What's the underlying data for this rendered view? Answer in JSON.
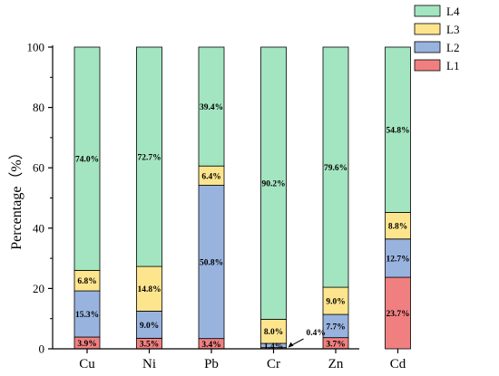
{
  "chart_data": {
    "type": "bar",
    "stacked": true,
    "categories": [
      "Cu",
      "Ni",
      "Pb",
      "Cr",
      "Zn",
      "Cd"
    ],
    "series": [
      {
        "name": "L1",
        "color": "#f08080",
        "values": [
          3.9,
          3.5,
          3.4,
          0.4,
          3.7,
          23.7
        ],
        "labels": [
          "3.9%",
          "3.5%",
          "3.4%",
          "0.4%",
          "3.7%",
          "23.7%"
        ]
      },
      {
        "name": "L2",
        "color": "#99b3df",
        "values": [
          15.3,
          9.0,
          50.8,
          1.4,
          7.7,
          12.7
        ],
        "labels": [
          "15.3%",
          "9.0%",
          "50.8%",
          "1.4%",
          "7.7%",
          "12.7%"
        ]
      },
      {
        "name": "L3",
        "color": "#fde58e",
        "values": [
          6.8,
          14.8,
          6.4,
          8.0,
          9.0,
          8.8
        ],
        "labels": [
          "6.8%",
          "14.8%",
          "6.4%",
          "8.0%",
          "9.0%",
          "8.8%"
        ]
      },
      {
        "name": "L4",
        "color": "#a3e5c0",
        "values": [
          74.0,
          72.7,
          39.4,
          90.2,
          79.6,
          54.8
        ],
        "labels": [
          "74.0%",
          "72.7%",
          "39.4%",
          "90.2%",
          "79.6%",
          "54.8%"
        ]
      }
    ],
    "ylabel": "Percentage（%）",
    "ylim": [
      0,
      100
    ],
    "yticks": [
      0,
      20,
      40,
      60,
      80,
      100
    ],
    "legend_position": "top-right",
    "grid": false
  }
}
